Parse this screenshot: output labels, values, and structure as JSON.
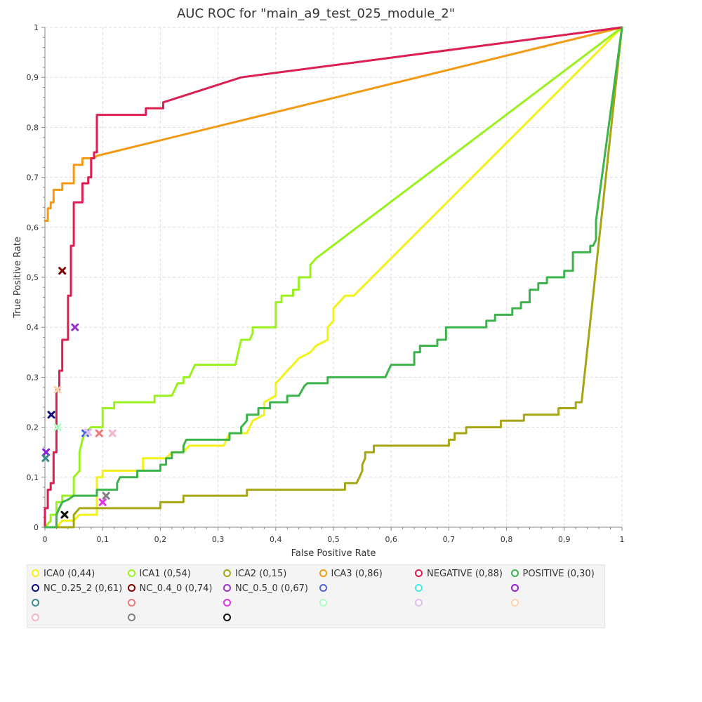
{
  "chart_data": {
    "type": "line",
    "title": "AUC ROC for \"main_a9_test_025_module_2\"",
    "xlabel": "False Positive Rate",
    "ylabel": "True Positive Rate",
    "xlim": [
      0,
      1
    ],
    "ylim": [
      0,
      1
    ],
    "x_ticks": [
      "0",
      "0,1",
      "0,2",
      "0,3",
      "0,4",
      "0,5",
      "0,6",
      "0,7",
      "0,8",
      "0,9",
      "1"
    ],
    "y_ticks": [
      "0",
      "0,1",
      "0,2",
      "0,3",
      "0,4",
      "0,5",
      "0,6",
      "0,7",
      "0,8",
      "0,9",
      "1"
    ],
    "grid": true,
    "legend_position": "bottom",
    "series": [
      {
        "name": "ICA0 (0,44)",
        "color": "#f2f219",
        "points": [
          [
            0,
            0
          ],
          [
            0.02,
            0
          ],
          [
            0.03,
            0.013
          ],
          [
            0.05,
            0.013
          ],
          [
            0.06,
            0.025
          ],
          [
            0.09,
            0.025
          ],
          [
            0.09,
            0.1
          ],
          [
            0.1,
            0.1
          ],
          [
            0.1,
            0.113
          ],
          [
            0.17,
            0.113
          ],
          [
            0.17,
            0.138
          ],
          [
            0.21,
            0.138
          ],
          [
            0.22,
            0.15
          ],
          [
            0.24,
            0.15
          ],
          [
            0.25,
            0.163
          ],
          [
            0.31,
            0.163
          ],
          [
            0.32,
            0.188
          ],
          [
            0.35,
            0.188
          ],
          [
            0.36,
            0.213
          ],
          [
            0.38,
            0.225
          ],
          [
            0.38,
            0.25
          ],
          [
            0.4,
            0.263
          ],
          [
            0.4,
            0.288
          ],
          [
            0.41,
            0.3
          ],
          [
            0.42,
            0.313
          ],
          [
            0.43,
            0.325
          ],
          [
            0.44,
            0.338
          ],
          [
            0.46,
            0.35
          ],
          [
            0.47,
            0.363
          ],
          [
            0.49,
            0.375
          ],
          [
            0.49,
            0.4
          ],
          [
            0.5,
            0.413
          ],
          [
            0.5,
            0.438
          ],
          [
            0.51,
            0.45
          ],
          [
            0.52,
            0.463
          ],
          [
            0.535,
            0.463
          ],
          [
            1,
            1
          ]
        ]
      },
      {
        "name": "ICA1 (0,54)",
        "color": "#99f21c",
        "points": [
          [
            0,
            0
          ],
          [
            0.01,
            0.013
          ],
          [
            0.01,
            0.025
          ],
          [
            0.02,
            0.025
          ],
          [
            0.02,
            0.05
          ],
          [
            0.03,
            0.05
          ],
          [
            0.03,
            0.063
          ],
          [
            0.05,
            0.063
          ],
          [
            0.05,
            0.1
          ],
          [
            0.06,
            0.113
          ],
          [
            0.06,
            0.15
          ],
          [
            0.065,
            0.175
          ],
          [
            0.07,
            0.19
          ],
          [
            0.08,
            0.2
          ],
          [
            0.1,
            0.2
          ],
          [
            0.1,
            0.238
          ],
          [
            0.12,
            0.238
          ],
          [
            0.12,
            0.25
          ],
          [
            0.19,
            0.25
          ],
          [
            0.19,
            0.263
          ],
          [
            0.22,
            0.263
          ],
          [
            0.23,
            0.288
          ],
          [
            0.24,
            0.288
          ],
          [
            0.24,
            0.3
          ],
          [
            0.25,
            0.3
          ],
          [
            0.26,
            0.325
          ],
          [
            0.33,
            0.325
          ],
          [
            0.34,
            0.375
          ],
          [
            0.355,
            0.375
          ],
          [
            0.36,
            0.388
          ],
          [
            0.36,
            0.4
          ],
          [
            0.4,
            0.4
          ],
          [
            0.4,
            0.45
          ],
          [
            0.41,
            0.45
          ],
          [
            0.41,
            0.463
          ],
          [
            0.43,
            0.463
          ],
          [
            0.43,
            0.475
          ],
          [
            0.44,
            0.475
          ],
          [
            0.44,
            0.5
          ],
          [
            0.46,
            0.5
          ],
          [
            0.46,
            0.525
          ],
          [
            0.47,
            0.538
          ],
          [
            1,
            1
          ]
        ]
      },
      {
        "name": "ICA2 (0,15)",
        "color": "#a6a614",
        "points": [
          [
            0,
            0
          ],
          [
            0.05,
            0
          ],
          [
            0.05,
            0.025
          ],
          [
            0.06,
            0.038
          ],
          [
            0.2,
            0.038
          ],
          [
            0.2,
            0.05
          ],
          [
            0.24,
            0.05
          ],
          [
            0.24,
            0.063
          ],
          [
            0.35,
            0.063
          ],
          [
            0.35,
            0.075
          ],
          [
            0.52,
            0.075
          ],
          [
            0.52,
            0.088
          ],
          [
            0.54,
            0.088
          ],
          [
            0.545,
            0.1
          ],
          [
            0.55,
            0.113
          ],
          [
            0.55,
            0.125
          ],
          [
            0.555,
            0.138
          ],
          [
            0.555,
            0.15
          ],
          [
            0.57,
            0.15
          ],
          [
            0.57,
            0.163
          ],
          [
            0.7,
            0.163
          ],
          [
            0.7,
            0.175
          ],
          [
            0.71,
            0.175
          ],
          [
            0.71,
            0.188
          ],
          [
            0.73,
            0.188
          ],
          [
            0.73,
            0.2
          ],
          [
            0.79,
            0.2
          ],
          [
            0.79,
            0.213
          ],
          [
            0.83,
            0.213
          ],
          [
            0.83,
            0.225
          ],
          [
            0.89,
            0.225
          ],
          [
            0.89,
            0.238
          ],
          [
            0.92,
            0.238
          ],
          [
            0.92,
            0.25
          ],
          [
            0.93,
            0.25
          ],
          [
            1,
            1
          ]
        ]
      },
      {
        "name": "ICA3 (0,86)",
        "color": "#f29a14",
        "points": [
          [
            0,
            0.613
          ],
          [
            0,
            0.613
          ],
          [
            0.005,
            0.613
          ],
          [
            0.005,
            0.638
          ],
          [
            0.01,
            0.638
          ],
          [
            0.01,
            0.65
          ],
          [
            0.015,
            0.65
          ],
          [
            0.015,
            0.675
          ],
          [
            0.03,
            0.675
          ],
          [
            0.03,
            0.688
          ],
          [
            0.05,
            0.688
          ],
          [
            0.05,
            0.725
          ],
          [
            0.065,
            0.725
          ],
          [
            0.065,
            0.738
          ],
          [
            0.085,
            0.738
          ],
          [
            0.09,
            0.743
          ],
          [
            1,
            1
          ]
        ]
      },
      {
        "name": "NEGATIVE (0,88)",
        "color": "#dc1e50",
        "points": [
          [
            0,
            0
          ],
          [
            0,
            0.038
          ],
          [
            0.005,
            0.038
          ],
          [
            0.005,
            0.075
          ],
          [
            0.01,
            0.075
          ],
          [
            0.01,
            0.088
          ],
          [
            0.015,
            0.088
          ],
          [
            0.015,
            0.15
          ],
          [
            0.02,
            0.15
          ],
          [
            0.02,
            0.275
          ],
          [
            0.025,
            0.275
          ],
          [
            0.025,
            0.313
          ],
          [
            0.03,
            0.313
          ],
          [
            0.03,
            0.375
          ],
          [
            0.04,
            0.375
          ],
          [
            0.04,
            0.463
          ],
          [
            0.045,
            0.463
          ],
          [
            0.045,
            0.563
          ],
          [
            0.05,
            0.563
          ],
          [
            0.05,
            0.65
          ],
          [
            0.065,
            0.65
          ],
          [
            0.065,
            0.688
          ],
          [
            0.075,
            0.688
          ],
          [
            0.075,
            0.7
          ],
          [
            0.08,
            0.7
          ],
          [
            0.08,
            0.738
          ],
          [
            0.085,
            0.738
          ],
          [
            0.085,
            0.75
          ],
          [
            0.09,
            0.75
          ],
          [
            0.09,
            0.825
          ],
          [
            0.175,
            0.825
          ],
          [
            0.175,
            0.838
          ],
          [
            0.205,
            0.838
          ],
          [
            0.205,
            0.85
          ],
          [
            0.34,
            0.9
          ],
          [
            1,
            1
          ]
        ]
      },
      {
        "name": "POSITIVE (0,30)",
        "color": "#3cb44b",
        "points": [
          [
            0,
            0
          ],
          [
            0.02,
            0
          ],
          [
            0.02,
            0.025
          ],
          [
            0.025,
            0.038
          ],
          [
            0.03,
            0.05
          ],
          [
            0.04,
            0.055
          ],
          [
            0.05,
            0.063
          ],
          [
            0.09,
            0.063
          ],
          [
            0.09,
            0.075
          ],
          [
            0.125,
            0.075
          ],
          [
            0.125,
            0.088
          ],
          [
            0.13,
            0.1
          ],
          [
            0.16,
            0.1
          ],
          [
            0.16,
            0.113
          ],
          [
            0.2,
            0.113
          ],
          [
            0.2,
            0.125
          ],
          [
            0.21,
            0.125
          ],
          [
            0.21,
            0.138
          ],
          [
            0.22,
            0.138
          ],
          [
            0.22,
            0.15
          ],
          [
            0.24,
            0.15
          ],
          [
            0.24,
            0.163
          ],
          [
            0.245,
            0.175
          ],
          [
            0.32,
            0.175
          ],
          [
            0.32,
            0.188
          ],
          [
            0.34,
            0.188
          ],
          [
            0.34,
            0.2
          ],
          [
            0.35,
            0.213
          ],
          [
            0.35,
            0.225
          ],
          [
            0.37,
            0.225
          ],
          [
            0.37,
            0.238
          ],
          [
            0.39,
            0.238
          ],
          [
            0.39,
            0.25
          ],
          [
            0.42,
            0.25
          ],
          [
            0.42,
            0.263
          ],
          [
            0.44,
            0.263
          ],
          [
            0.45,
            0.283
          ],
          [
            0.455,
            0.288
          ],
          [
            0.49,
            0.288
          ],
          [
            0.49,
            0.3
          ],
          [
            0.59,
            0.3
          ],
          [
            0.595,
            0.313
          ],
          [
            0.6,
            0.325
          ],
          [
            0.64,
            0.325
          ],
          [
            0.64,
            0.35
          ],
          [
            0.65,
            0.35
          ],
          [
            0.65,
            0.363
          ],
          [
            0.68,
            0.363
          ],
          [
            0.68,
            0.375
          ],
          [
            0.695,
            0.375
          ],
          [
            0.695,
            0.4
          ],
          [
            0.765,
            0.4
          ],
          [
            0.765,
            0.413
          ],
          [
            0.78,
            0.413
          ],
          [
            0.78,
            0.425
          ],
          [
            0.81,
            0.425
          ],
          [
            0.81,
            0.438
          ],
          [
            0.825,
            0.438
          ],
          [
            0.825,
            0.45
          ],
          [
            0.84,
            0.45
          ],
          [
            0.84,
            0.475
          ],
          [
            0.855,
            0.475
          ],
          [
            0.855,
            0.488
          ],
          [
            0.87,
            0.488
          ],
          [
            0.87,
            0.5
          ],
          [
            0.9,
            0.5
          ],
          [
            0.9,
            0.513
          ],
          [
            0.915,
            0.513
          ],
          [
            0.915,
            0.55
          ],
          [
            0.945,
            0.55
          ],
          [
            0.945,
            0.563
          ],
          [
            0.95,
            0.563
          ],
          [
            0.955,
            0.575
          ],
          [
            0.955,
            0.613
          ],
          [
            1,
            1
          ]
        ]
      }
    ],
    "markers": [
      {
        "name": "NC_0.25_2 (0,61)",
        "color": "#0a0a78",
        "x": 0.011,
        "y": 0.225
      },
      {
        "name": "NC_0.4_0 (0,74)",
        "color": "#800000",
        "x": 0.03,
        "y": 0.513
      },
      {
        "name": "NC_0.5_0 (0,67)",
        "color": "#9632c8",
        "x": 0.052,
        "y": 0.4
      },
      {
        "name": "",
        "color": "#4b64dc",
        "x": 0.07,
        "y": 0.188
      },
      {
        "name": "",
        "color": "#46e6e6",
        "x": 0.002,
        "y": 0.15
      },
      {
        "name": "",
        "color": "#8c1edc",
        "x": 0.002,
        "y": 0.15
      },
      {
        "name": "",
        "color": "#3c8c8c",
        "x": 0.001,
        "y": 0.138
      },
      {
        "name": "",
        "color": "#f07878",
        "x": 0.094,
        "y": 0.188
      },
      {
        "name": "",
        "color": "#e632e6",
        "x": 0.1,
        "y": 0.05
      },
      {
        "name": "",
        "color": "#aaffc3",
        "x": 0.022,
        "y": 0.2
      },
      {
        "name": "",
        "color": "#dcbef0",
        "x": 0.075,
        "y": 0.19
      },
      {
        "name": "",
        "color": "#ffd2aa",
        "x": 0.022,
        "y": 0.275
      },
      {
        "name": "",
        "color": "#f5b4c8",
        "x": 0.117,
        "y": 0.188
      },
      {
        "name": "",
        "color": "#808080",
        "x": 0.106,
        "y": 0.063
      },
      {
        "name": "",
        "color": "#101010",
        "x": 0.034,
        "y": 0.025
      }
    ],
    "legend": [
      {
        "label": "ICA0 (0,44)",
        "color": "#f2f219"
      },
      {
        "label": "ICA1 (0,54)",
        "color": "#99f21c"
      },
      {
        "label": "ICA2 (0,15)",
        "color": "#a6a614"
      },
      {
        "label": "ICA3 (0,86)",
        "color": "#f29a14"
      },
      {
        "label": "NEGATIVE (0,88)",
        "color": "#dc1e50"
      },
      {
        "label": "POSITIVE (0,30)",
        "color": "#3cb44b"
      },
      {
        "label": "NC_0.25_2 (0,61)",
        "color": "#0a0a78"
      },
      {
        "label": "NC_0.4_0 (0,74)",
        "color": "#800000"
      },
      {
        "label": "NC_0.5_0 (0,67)",
        "color": "#9632c8"
      },
      {
        "label": "",
        "color": "#4b64dc"
      },
      {
        "label": "",
        "color": "#46e6e6"
      },
      {
        "label": "",
        "color": "#8c1edc"
      },
      {
        "label": "",
        "color": "#3c8c8c"
      },
      {
        "label": "",
        "color": "#f07878"
      },
      {
        "label": "",
        "color": "#e632e6"
      },
      {
        "label": "",
        "color": "#aaffc3"
      },
      {
        "label": "",
        "color": "#dcbef0"
      },
      {
        "label": "",
        "color": "#ffd2aa"
      },
      {
        "label": "",
        "color": "#f5b4c8"
      },
      {
        "label": "",
        "color": "#808080"
      },
      {
        "label": "",
        "color": "#101010"
      }
    ]
  }
}
